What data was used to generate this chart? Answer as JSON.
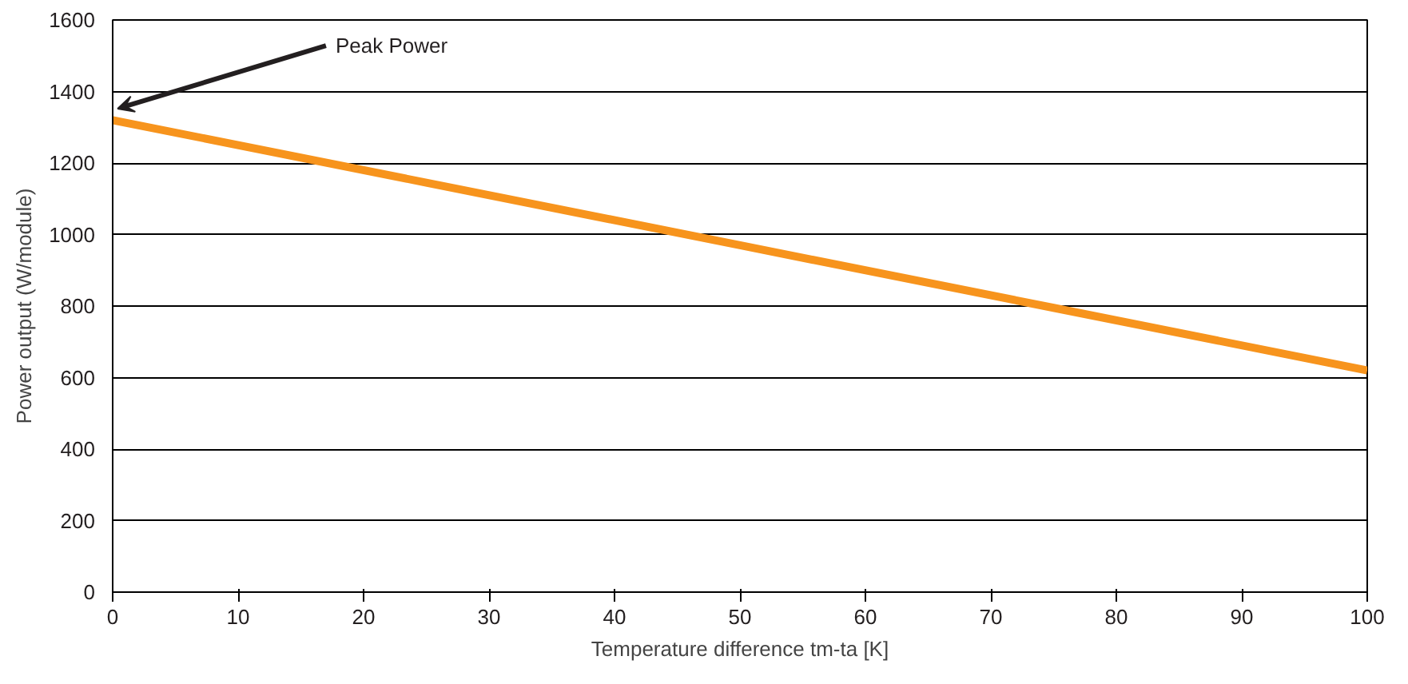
{
  "chart_data": {
    "type": "line",
    "xlabel": "Temperature difference tm-ta [K]",
    "ylabel": "Power output (W/module)",
    "x": [
      0,
      25,
      50,
      75,
      100
    ],
    "series": [
      {
        "color": "#f7941d",
        "values": [
          1320,
          1145,
          970,
          795,
          620
        ]
      }
    ],
    "xlim": [
      0,
      100
    ],
    "xticks": [
      0,
      10,
      20,
      30,
      40,
      50,
      60,
      70,
      80,
      90,
      100
    ],
    "ylim": [
      0,
      1600
    ],
    "yticks": [
      0,
      200,
      400,
      600,
      800,
      1000,
      1200,
      1400,
      1600
    ],
    "grid": "y",
    "marker": "none",
    "line_style": "solid",
    "annotations": [
      {
        "text": "Peak Power",
        "x": 0,
        "y": 1320
      }
    ]
  }
}
